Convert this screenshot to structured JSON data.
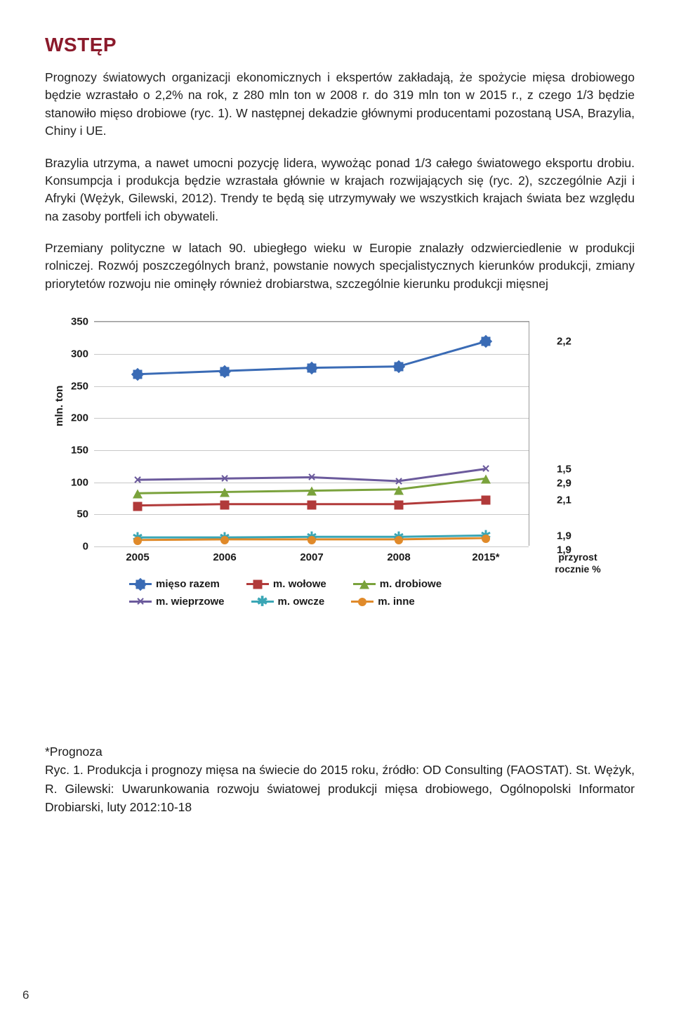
{
  "heading": {
    "text": "WSTĘP",
    "color": "#8b1a2b"
  },
  "paragraphs": [
    "Prognozy światowych organizacji ekonomicznych i ekspertów zakładają, że spożycie mięsa drobiowego będzie wzrastało o 2,2% na rok, z 280 mln ton w 2008 r. do 319 mln ton w 2015 r., z czego 1/3 będzie stanowiło mięso drobiowe (ryc. 1). W następnej dekadzie głównymi producentami pozostaną USA, Brazylia, Chiny i UE.",
    "Brazylia utrzyma, a nawet umocni pozycję lidera, wywożąc ponad 1/3 całego światowego eksportu drobiu. Konsumpcja i produkcja będzie wzrastała głównie w krajach rozwijających się (ryc. 2), szczególnie Azji i Afryki (Wężyk, Gilewski, 2012). Trendy te będą się utrzymywały we wszystkich krajach świata bez względu na zasoby portfeli ich obywateli.",
    "Przemiany polityczne w latach 90. ubiegłego wieku w Europie znalazły odzwierciedlenie w produkcji rolniczej. Rozwój poszczególnych branż, powstanie nowych specjalistycznych kierunków produkcji, zmiany priorytetów rozwoju nie ominęły również drobiarstwa, szczególnie kierunku produkcji mięsnej"
  ],
  "chart": {
    "type": "line",
    "y_axis_label": "mln. ton",
    "x_categories": [
      "2005",
      "2006",
      "2007",
      "2008",
      "2015*"
    ],
    "extra_x_label": "przyrost\nrocznie %",
    "ylim": [
      0,
      350
    ],
    "ytick_step": 50,
    "grid_color": "#c8c8c8",
    "border_color": "#999999",
    "background_color": "#ffffff",
    "label_fontsize": 15,
    "series": [
      {
        "name": "mięso razem",
        "marker": "diamond",
        "color": "#3a6bb5",
        "values": [
          268,
          273,
          278,
          280,
          319
        ],
        "right_label": "2,2"
      },
      {
        "name": "m. wołowe",
        "marker": "square",
        "color": "#b13a3a",
        "values": [
          63,
          65,
          65,
          65,
          72
        ],
        "right_label": "2,1"
      },
      {
        "name": "m. drobiowe",
        "marker": "triangle",
        "color": "#7aa23c",
        "values": [
          82,
          84,
          86,
          88,
          105
        ],
        "right_label": "2,9"
      },
      {
        "name": "m. wieprzowe",
        "marker": "x",
        "color": "#6b5a9c",
        "values": [
          103,
          105,
          107,
          101,
          120
        ],
        "right_label": "1,5"
      },
      {
        "name": "m. owcze",
        "marker": "star",
        "color": "#3aa6b5",
        "values": [
          13,
          13,
          14,
          14,
          16
        ],
        "right_label": "1,9"
      },
      {
        "name": "m. inne",
        "marker": "circle",
        "color": "#e08a2a",
        "values": [
          9,
          10,
          10,
          10,
          12
        ],
        "right_label": "1,9"
      }
    ],
    "legend_order": [
      "mięso razem",
      "m. wołowe",
      "m. drobiowe",
      "m. wieprzowe",
      "m. owcze",
      "m. inne"
    ]
  },
  "footnote": "*Prognoza",
  "caption": "Ryc. 1. Produkcja i prognozy mięsa na świecie do 2015 roku, źródło: OD Consulting (FAOSTAT). St. Wężyk, R. Gilewski: Uwarunkowania rozwoju światowej produkcji mięsa drobiowego, Ogólnopolski Informator Drobiarski, luty 2012:10-18",
  "page_number": "6"
}
